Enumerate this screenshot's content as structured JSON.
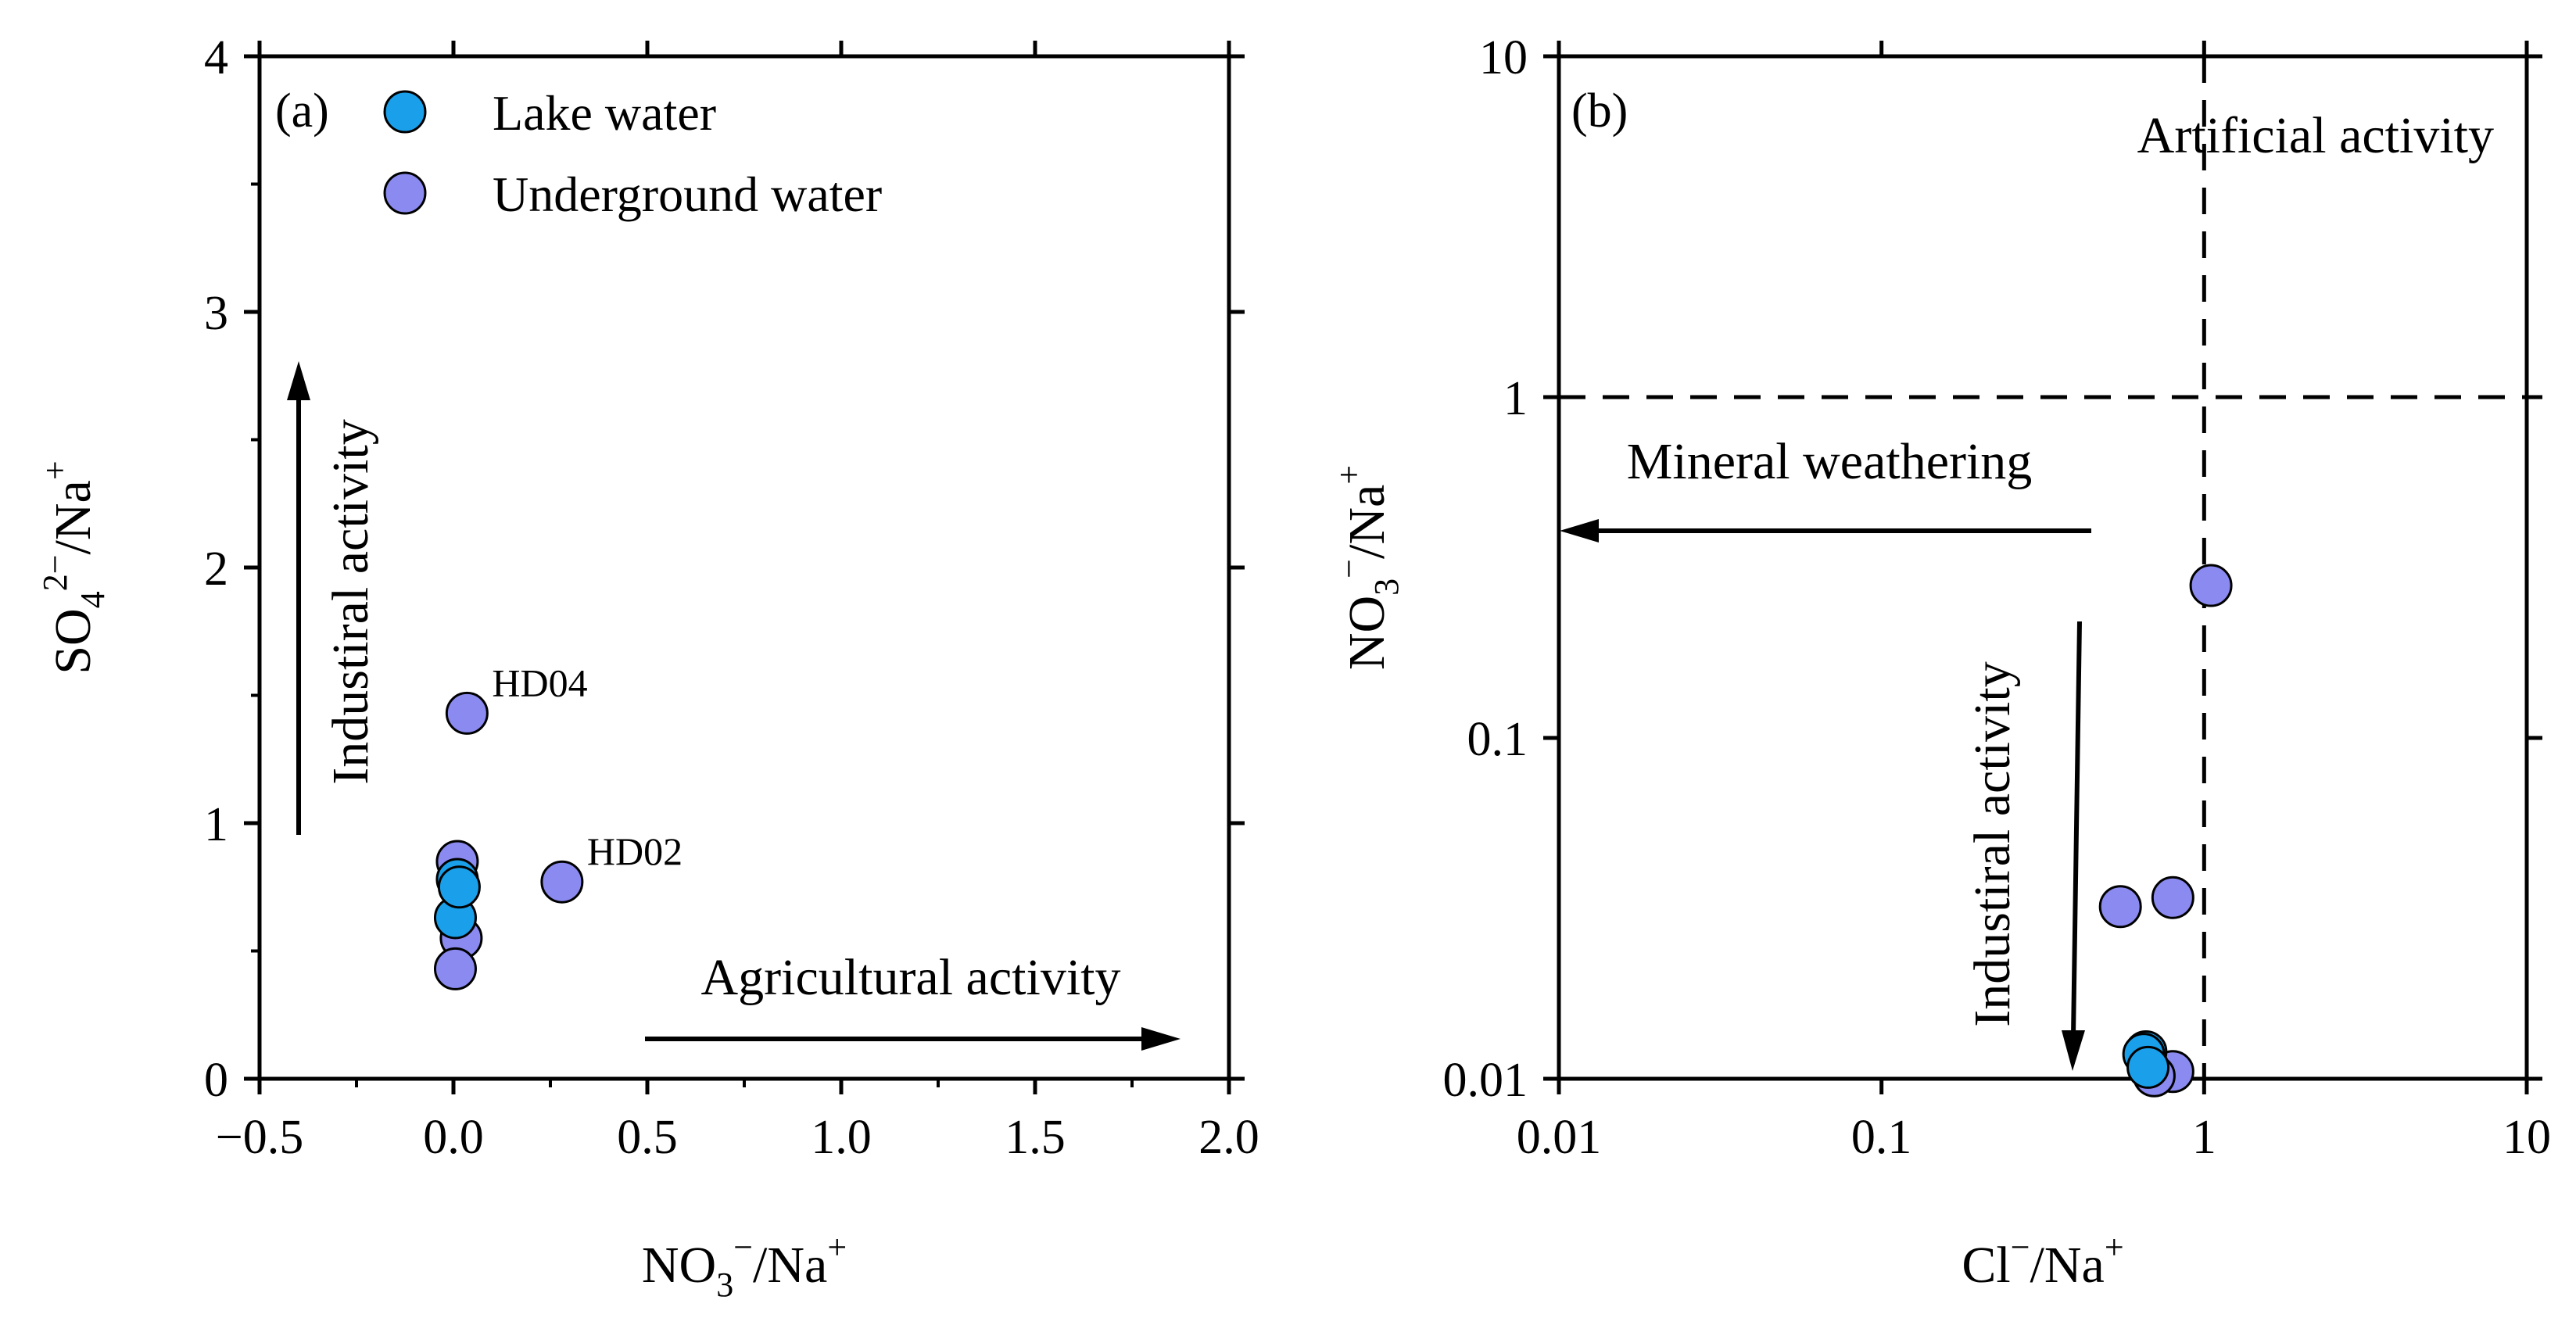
{
  "colors": {
    "lake": "#1aa0ea",
    "underground": "#8a8af0",
    "axis": "#000000"
  },
  "chart_data": [
    {
      "type": "scatter",
      "panel_label": "(a)",
      "xlim": [
        -0.5,
        2.0
      ],
      "ylim": [
        0,
        4
      ],
      "x_ticks": [
        "−0.5",
        "0.0",
        "0.5",
        "1.0",
        "1.5",
        "2.0"
      ],
      "y_ticks": [
        "0",
        "1",
        "2",
        "3",
        "4"
      ],
      "xlabel": {
        "main": "NO",
        "sub": "3",
        "sup": "−",
        "rest": "/Na",
        "sup2": "+"
      },
      "ylabel": {
        "main": "SO",
        "sub": "4",
        "sup": "2−",
        "rest": "/Na",
        "sup2": "+"
      },
      "legend": [
        "Lake water",
        "Underground water"
      ],
      "legend_position": "top-left",
      "series": [
        {
          "name": "Underground water",
          "points": [
            {
              "x": 0.035,
              "y": 1.43,
              "label": "HD04"
            },
            {
              "x": 0.28,
              "y": 0.77,
              "label": "HD02"
            },
            {
              "x": 0.01,
              "y": 0.85
            },
            {
              "x": 0.02,
              "y": 0.55
            },
            {
              "x": 0.005,
              "y": 0.43
            }
          ]
        },
        {
          "name": "Lake water",
          "points": [
            {
              "x": 0.01,
              "y": 0.78
            },
            {
              "x": 0.005,
              "y": 0.63
            },
            {
              "x": 0.015,
              "y": 0.75
            }
          ]
        }
      ],
      "annotations": {
        "vertical_arrow": "Industiral activity",
        "horizontal_arrow": "Agricultural activity"
      }
    },
    {
      "type": "scatter",
      "panel_label": "(b)",
      "xscale": "log",
      "yscale": "log",
      "xlim": [
        0.01,
        10
      ],
      "ylim": [
        0.01,
        10
      ],
      "x_ticks": [
        "0.01",
        "0.1",
        "1",
        "10"
      ],
      "y_ticks": [
        "0.01",
        "0.1",
        "1",
        "10"
      ],
      "xlabel": {
        "main": "Cl",
        "sup": "−",
        "rest": "/Na",
        "sup2": "+"
      },
      "ylabel": {
        "main": "NO",
        "sub": "3",
        "sup": "−",
        "rest": "/Na",
        "sup2": "+"
      },
      "reference_lines": {
        "x": 1,
        "y": 1
      },
      "series": [
        {
          "name": "Underground water",
          "points": [
            {
              "x": 1.05,
              "y": 0.28
            },
            {
              "x": 0.55,
              "y": 0.032
            },
            {
              "x": 0.8,
              "y": 0.034
            },
            {
              "x": 0.8,
              "y": 0.0105
            },
            {
              "x": 0.7,
              "y": 0.0102
            }
          ]
        },
        {
          "name": "Lake water",
          "points": [
            {
              "x": 0.66,
              "y": 0.012
            },
            {
              "x": 0.65,
              "y": 0.0118
            },
            {
              "x": 0.67,
              "y": 0.0108
            }
          ]
        }
      ],
      "annotations": {
        "corner": "Artificial activity",
        "horizontal_arrow": "Mineral weathering",
        "vertical_arrow": "Industiral activity"
      }
    }
  ]
}
